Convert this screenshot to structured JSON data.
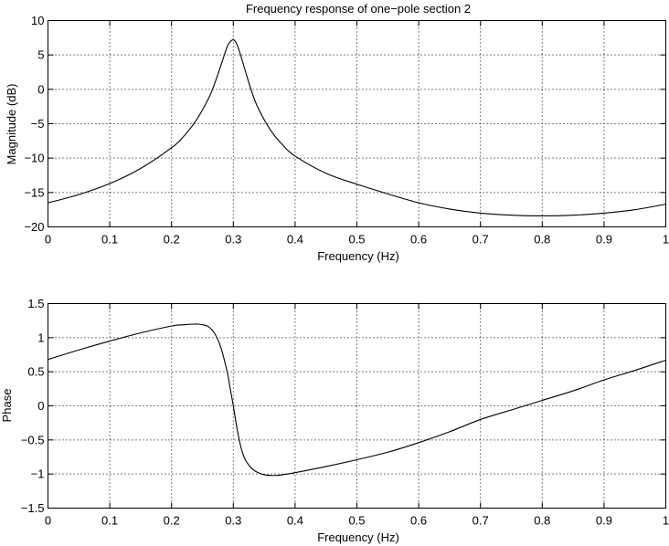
{
  "chart_data": [
    {
      "type": "line",
      "title": "Frequency response of one−pole section 2",
      "xlabel": "Frequency (Hz)",
      "ylabel": "Magnitude (dB)",
      "xlim": [
        0,
        1
      ],
      "ylim": [
        -20,
        10
      ],
      "grid": true,
      "x_ticks": [
        "0",
        "0.1",
        "0.2",
        "0.3",
        "0.4",
        "0.5",
        "0.6",
        "0.7",
        "0.8",
        "0.9",
        "1"
      ],
      "y_ticks": [
        "10",
        "5",
        "0",
        "−5",
        "−10",
        "−15",
        "−20"
      ],
      "x_tick_values": [
        0,
        0.1,
        0.2,
        0.3,
        0.4,
        0.5,
        0.6,
        0.7,
        0.8,
        0.9,
        1
      ],
      "y_tick_values": [
        10,
        5,
        0,
        -5,
        -10,
        -15,
        -20
      ],
      "series": [
        {
          "x": [
            0,
            0.05,
            0.1,
            0.15,
            0.2,
            0.22,
            0.24,
            0.26,
            0.27,
            0.28,
            0.29,
            0.295,
            0.3,
            0.305,
            0.31,
            0.32,
            0.33,
            0.34,
            0.36,
            0.38,
            0.4,
            0.45,
            0.5,
            0.55,
            0.6,
            0.65,
            0.7,
            0.75,
            0.8,
            0.85,
            0.9,
            0.95,
            1
          ],
          "y": [
            -16.5,
            -15.3,
            -13.7,
            -11.5,
            -8.5,
            -6.8,
            -4.5,
            -1.3,
            0.9,
            3.5,
            6.2,
            6.9,
            7.2,
            6.7,
            5.5,
            2.5,
            -0.4,
            -2.7,
            -5.9,
            -8.1,
            -9.7,
            -12.2,
            -13.8,
            -15.2,
            -16.5,
            -17.4,
            -18.0,
            -18.3,
            -18.4,
            -18.3,
            -18.0,
            -17.5,
            -16.7
          ]
        }
      ]
    },
    {
      "type": "line",
      "xlabel": "Frequency (Hz)",
      "ylabel": "Phase",
      "xlim": [
        0,
        1
      ],
      "ylim": [
        -1.5,
        1.5
      ],
      "grid": true,
      "x_ticks": [
        "0",
        "0.1",
        "0.2",
        "0.3",
        "0.4",
        "0.5",
        "0.6",
        "0.7",
        "0.8",
        "0.9",
        "1"
      ],
      "y_ticks": [
        "1.5",
        "1",
        "0.5",
        "0",
        "−0.5",
        "−1",
        "−1.5"
      ],
      "x_tick_values": [
        0,
        0.1,
        0.2,
        0.3,
        0.4,
        0.5,
        0.6,
        0.7,
        0.8,
        0.9,
        1
      ],
      "y_tick_values": [
        1.5,
        1,
        0.5,
        0,
        -0.5,
        -1,
        -1.5
      ],
      "series": [
        {
          "x": [
            0,
            0.05,
            0.1,
            0.15,
            0.2,
            0.22,
            0.24,
            0.25,
            0.26,
            0.27,
            0.28,
            0.29,
            0.295,
            0.3,
            0.305,
            0.31,
            0.315,
            0.32,
            0.33,
            0.34,
            0.35,
            0.36,
            0.37,
            0.38,
            0.4,
            0.45,
            0.5,
            0.55,
            0.6,
            0.65,
            0.7,
            0.75,
            0.8,
            0.85,
            0.9,
            0.95,
            1
          ],
          "y": [
            0.68,
            0.82,
            0.95,
            1.07,
            1.17,
            1.19,
            1.2,
            1.19,
            1.16,
            1.06,
            0.85,
            0.5,
            0.25,
            0.0,
            -0.28,
            -0.52,
            -0.69,
            -0.8,
            -0.92,
            -0.98,
            -1.01,
            -1.02,
            -1.02,
            -1.01,
            -0.98,
            -0.89,
            -0.79,
            -0.68,
            -0.54,
            -0.38,
            -0.2,
            -0.06,
            0.08,
            0.22,
            0.38,
            0.52,
            0.67
          ]
        }
      ]
    }
  ]
}
